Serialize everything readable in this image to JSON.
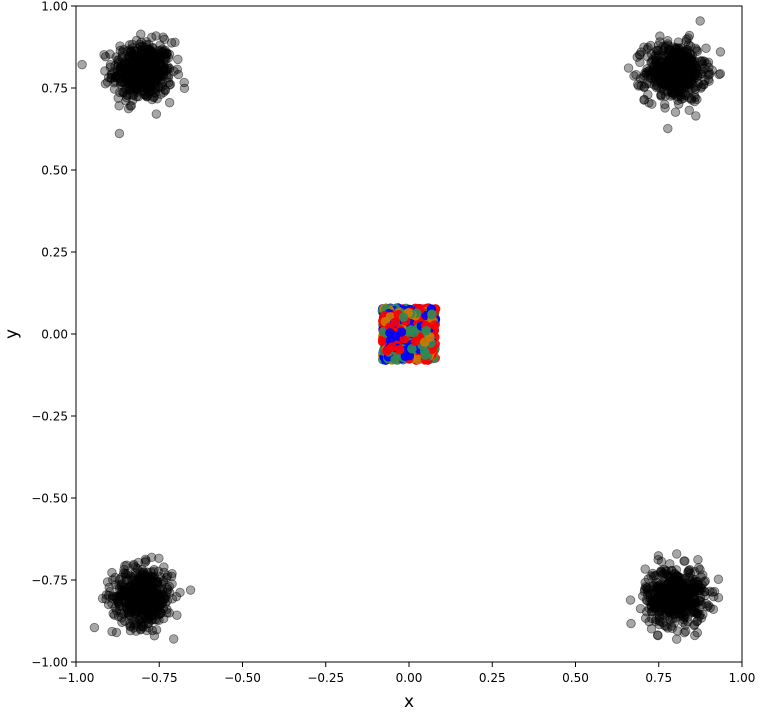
{
  "chart_data": {
    "type": "scatter",
    "title": "",
    "xlabel": "x",
    "ylabel": "y",
    "xlim": [
      -1.0,
      1.0
    ],
    "ylim": [
      -1.0,
      1.0
    ],
    "grid": false,
    "legend": "none",
    "x_ticks": [
      "−1.00",
      "−0.75",
      "−0.50",
      "−0.25",
      "0.00",
      "0.25",
      "0.50",
      "0.75",
      "1.00"
    ],
    "y_ticks": [
      "−1.00",
      "−0.75",
      "−0.50",
      "−0.25",
      "0.00",
      "0.25",
      "0.50",
      "0.75",
      "1.00"
    ],
    "series": [
      {
        "color": "#000000",
        "alpha": 0.35,
        "distribution": "gaussian clusters",
        "points_per_cluster": 500,
        "spread_sd": 0.045,
        "cluster_centers": [
          [
            -0.8,
            0.8
          ],
          [
            0.8,
            0.8
          ],
          [
            -0.8,
            -0.8
          ],
          [
            0.8,
            -0.8
          ]
        ]
      },
      {
        "color": "#0000ff",
        "alpha": 0.9,
        "distribution": "uniform square",
        "center": [
          0.0,
          0.0
        ],
        "half_width": 0.08,
        "points": 200
      },
      {
        "color": "#2e8b57",
        "alpha": 0.9,
        "distribution": "uniform square",
        "center": [
          0.0,
          0.0
        ],
        "half_width": 0.08,
        "points": 200
      },
      {
        "color": "#ff0000",
        "alpha": 0.9,
        "distribution": "uniform square",
        "center": [
          0.0,
          0.0
        ],
        "half_width": 0.08,
        "points": 200
      },
      {
        "color": "#cc7a00",
        "alpha": 0.9,
        "distribution": "uniform square",
        "center": [
          0.0,
          0.0
        ],
        "half_width": 0.08,
        "points": 150
      }
    ]
  }
}
